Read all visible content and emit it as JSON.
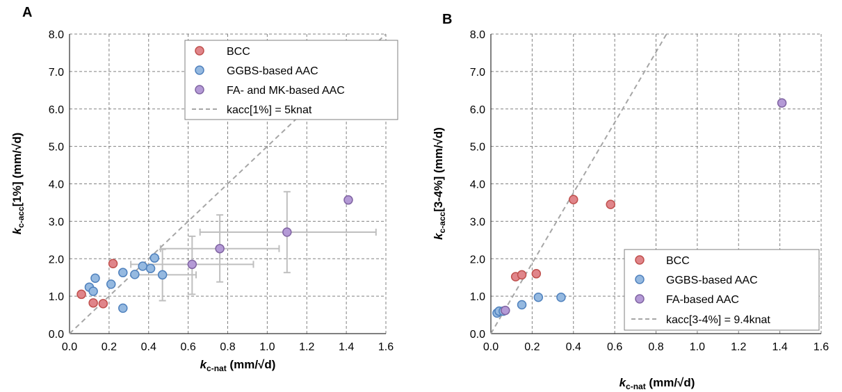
{
  "chart_data": [
    {
      "panel": "A",
      "type": "scatter",
      "xlabel_main": "k",
      "xlabel_sub": "c-nat",
      "xlabel_unit": " (mm/√d)",
      "ylabel_main": "k",
      "ylabel_sub": "c-acc",
      "ylabel_unit": "[1%] (mm/√d)",
      "xlim": [
        0,
        1.6
      ],
      "ylim": [
        0,
        8
      ],
      "xticks": [
        "0.0",
        "0.2",
        "0.4",
        "0.6",
        "0.8",
        "1.0",
        "1.2",
        "1.4",
        "1.6"
      ],
      "yticks": [
        "0.0",
        "1.0",
        "2.0",
        "3.0",
        "4.0",
        "5.0",
        "6.0",
        "7.0",
        "8.0"
      ],
      "grid": true,
      "legend_position": "top-right",
      "series": [
        {
          "name": "BCC",
          "color": "#e0858a",
          "stroke": "#c0504d",
          "points": [
            [
              0.06,
              1.05
            ],
            [
              0.12,
              0.82
            ],
            [
              0.17,
              0.8
            ],
            [
              0.22,
              1.87
            ]
          ]
        },
        {
          "name": "GGBS-based AAC",
          "color": "#95b9e0",
          "stroke": "#4f81bd",
          "points": [
            [
              0.1,
              1.24
            ],
            [
              0.12,
              1.13
            ],
            [
              0.13,
              1.48
            ],
            [
              0.21,
              1.32
            ],
            [
              0.27,
              1.63
            ],
            [
              0.27,
              0.68
            ],
            [
              0.33,
              1.58
            ],
            [
              0.37,
              1.8
            ],
            [
              0.41,
              1.74
            ],
            [
              0.43,
              2.02
            ],
            [
              0.47,
              1.57
            ]
          ]
        },
        {
          "name": "FA- and MK-based AAC",
          "color": "#b49ad6",
          "stroke": "#8064a2",
          "points": [
            [
              0.62,
              1.85
            ],
            [
              0.76,
              2.27
            ],
            [
              1.1,
              2.71
            ],
            [
              1.41,
              3.57
            ]
          ]
        }
      ],
      "error_bars": [
        {
          "x": 0.62,
          "y": 1.85,
          "xerr": [
            0.31,
            0.93
          ],
          "yerr": [
            1.05,
            2.6
          ]
        },
        {
          "x": 0.76,
          "y": 2.27,
          "xerr": [
            0.46,
            1.06
          ],
          "yerr": [
            1.38,
            3.17
          ]
        },
        {
          "x": 1.1,
          "y": 2.71,
          "xerr": [
            0.66,
            1.55
          ],
          "yerr": [
            1.63,
            3.79
          ]
        },
        {
          "x": 0.47,
          "y": 1.57,
          "xerr": [
            0.32,
            0.64
          ],
          "yerr": [
            0.88,
            2.25
          ]
        }
      ],
      "fit_line": {
        "name": "kacc[1%] = 5knat",
        "slope": 5
      }
    },
    {
      "panel": "B",
      "type": "scatter",
      "xlabel_main": "k",
      "xlabel_sub": "c-nat",
      "xlabel_unit": " (mm/√d)",
      "ylabel_main": "k",
      "ylabel_sub": "c-acc",
      "ylabel_unit": "[3-4%] (mm/√d)",
      "xlim": [
        0,
        1.6
      ],
      "ylim": [
        0,
        8
      ],
      "xticks": [
        "0.0",
        "0.2",
        "0.4",
        "0.6",
        "0.8",
        "1.0",
        "1.2",
        "1.4",
        "1.6"
      ],
      "yticks": [
        "0.0",
        "1.0",
        "2.0",
        "3.0",
        "4.0",
        "5.0",
        "6.0",
        "7.0",
        "8.0"
      ],
      "grid": true,
      "legend_position": "bottom-right",
      "series": [
        {
          "name": "BCC",
          "color": "#e0858a",
          "stroke": "#c0504d",
          "points": [
            [
              0.12,
              1.52
            ],
            [
              0.15,
              1.57
            ],
            [
              0.22,
              1.6
            ],
            [
              0.4,
              3.58
            ],
            [
              0.58,
              3.45
            ]
          ]
        },
        {
          "name": "GGBS-based AAC",
          "color": "#95b9e0",
          "stroke": "#4f81bd",
          "points": [
            [
              0.03,
              0.55
            ],
            [
              0.04,
              0.6
            ],
            [
              0.06,
              0.6
            ],
            [
              0.15,
              0.77
            ],
            [
              0.23,
              0.97
            ],
            [
              0.34,
              0.97
            ]
          ]
        },
        {
          "name": "FA-based AAC",
          "color": "#b49ad6",
          "stroke": "#8064a2",
          "points": [
            [
              0.07,
              0.62
            ],
            [
              1.41,
              6.16
            ]
          ]
        }
      ],
      "error_bars": [],
      "fit_line": {
        "name": "kacc[3-4%] = 9.4knat",
        "slope": 9.4
      }
    }
  ]
}
